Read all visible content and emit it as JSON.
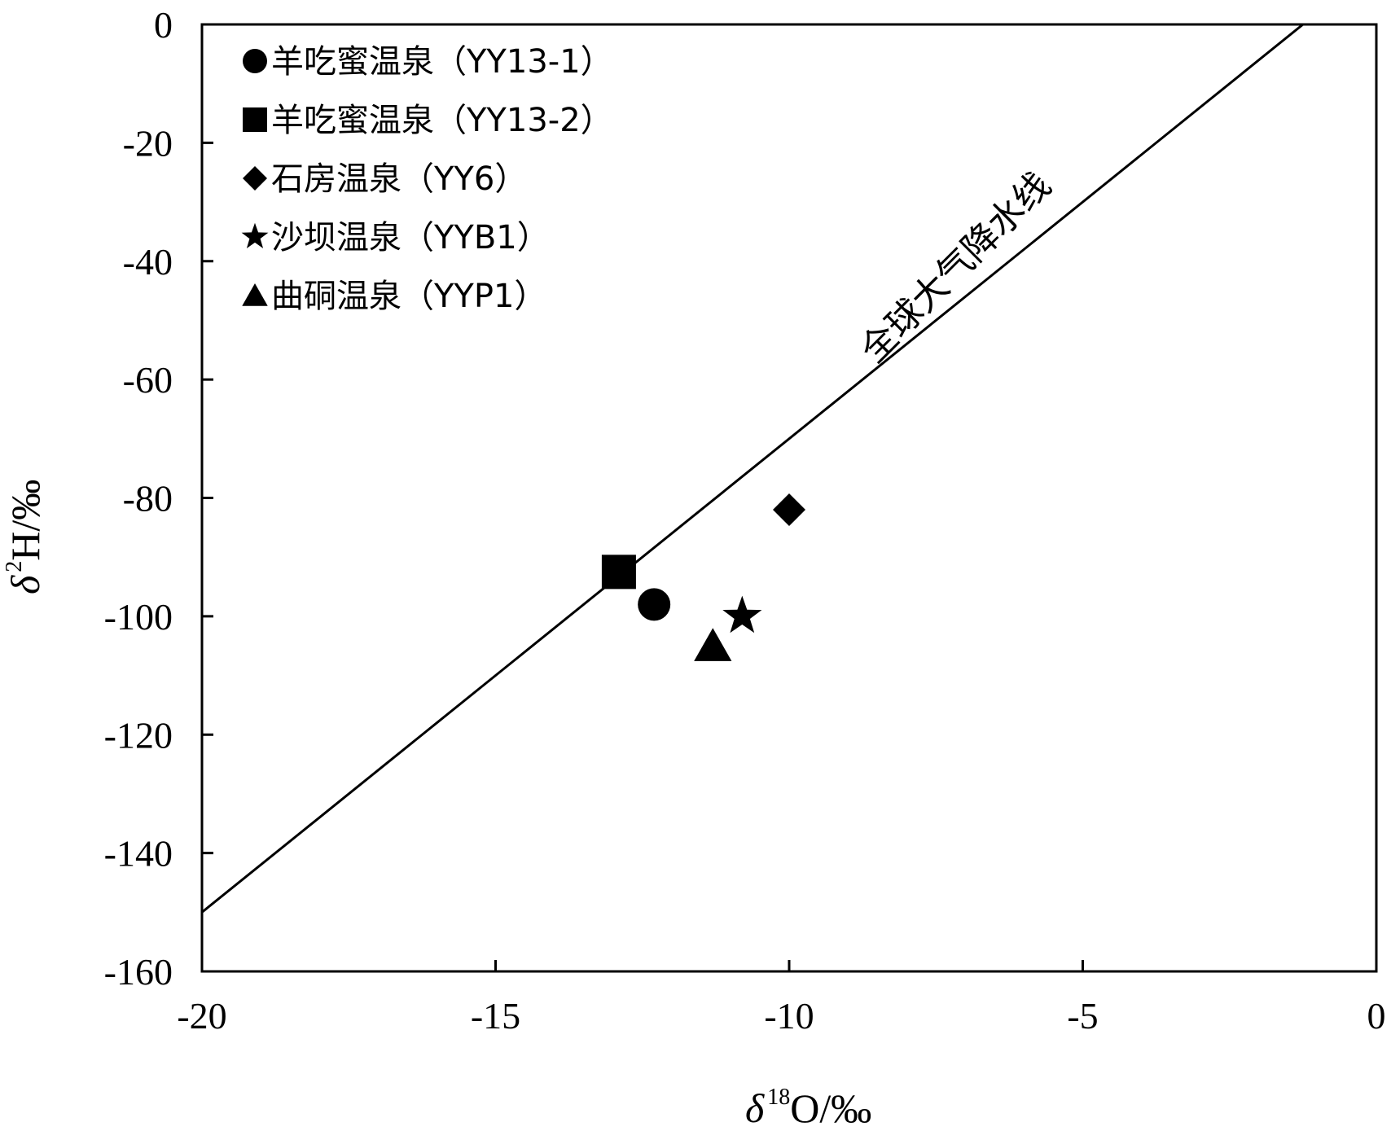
{
  "chart_data": {
    "type": "scatter",
    "title": "",
    "xlabel": {
      "symbol": "δ",
      "sup": "18",
      "rest": "O/‰"
    },
    "ylabel": {
      "symbol": "δ",
      "sup": "2",
      "rest": "H/‰"
    },
    "xlim": [
      -20,
      0
    ],
    "ylim": [
      -160,
      0
    ],
    "xticks": [
      -20,
      -15,
      -10,
      -5,
      0
    ],
    "yticks": [
      0,
      -20,
      -40,
      -60,
      -80,
      -100,
      -120,
      -140,
      -160
    ],
    "grid": false,
    "legend_position": "top-left",
    "series": [
      {
        "name": "羊吃蜜温泉（YY13-1）",
        "marker": "circle",
        "x": [
          -12.3
        ],
        "y": [
          -98
        ]
      },
      {
        "name": "羊吃蜜温泉（YY13-2）",
        "marker": "square",
        "x": [
          -12.9
        ],
        "y": [
          -92.5
        ]
      },
      {
        "name": "石房温泉（YY6）",
        "marker": "diamond",
        "x": [
          -10.0
        ],
        "y": [
          -82
        ]
      },
      {
        "name": "沙坝温泉（YYB1）",
        "marker": "star",
        "x": [
          -10.8
        ],
        "y": [
          -100
        ]
      },
      {
        "name": "曲硐温泉（YYP1）",
        "marker": "triangle",
        "x": [
          -11.3
        ],
        "y": [
          -105
        ]
      }
    ],
    "reference_line": {
      "label": "全球大气降水线",
      "slope": 8,
      "intercept": 10
    },
    "colors": {
      "marker": "#000000",
      "line": "#000000",
      "background": "#ffffff"
    }
  }
}
